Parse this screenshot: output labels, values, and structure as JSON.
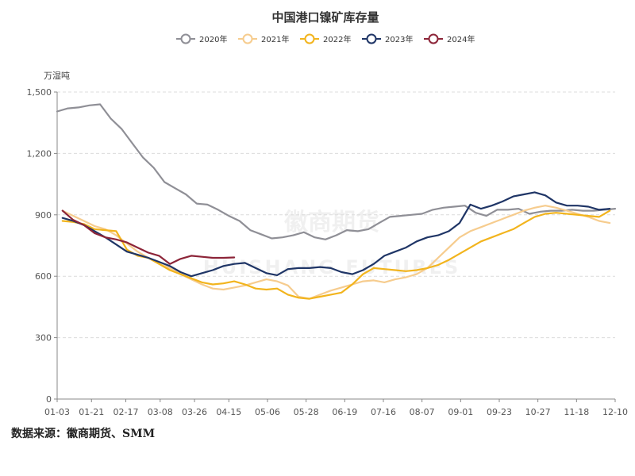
{
  "chart_data": {
    "type": "line",
    "title": "中国港口镍矿库存量",
    "ylabel": "万湿吨",
    "xlabel": "",
    "ylim": [
      0,
      1500
    ],
    "yticks": [
      0,
      300,
      600,
      900,
      1200,
      1500
    ],
    "ytick_labels": [
      "0",
      "300",
      "600",
      "900",
      "1,200",
      "1,500"
    ],
    "x_range_weeks": [
      0,
      52
    ],
    "x_tick_labels": [
      "01-03",
      "01-21",
      "02-17",
      "03-08",
      "03-26",
      "04-15",
      "05-06",
      "05-28",
      "06-19",
      "07-16",
      "08-07",
      "09-01",
      "09-23",
      "10-27",
      "11-18",
      "12-10"
    ],
    "x_tick_weeks": [
      0,
      3.2,
      6.4,
      9.6,
      12.8,
      16,
      19.6,
      23.2,
      26.8,
      30.4,
      34,
      37.6,
      41.2,
      44.8,
      48.4,
      52
    ],
    "legend_position": "top-center",
    "source": "数据来源：徽商期货、SMM",
    "watermark": {
      "cn": "徽商期货",
      "en": "HUISHANG FUTURES"
    },
    "series": [
      {
        "name": "2020年",
        "color": "#8f8f96",
        "x": [
          0,
          1,
          2,
          3,
          4,
          5,
          6,
          7,
          8,
          9,
          10,
          11,
          12,
          13,
          14,
          15,
          16,
          17,
          18,
          19,
          20,
          21,
          22,
          23,
          24,
          25,
          26,
          27,
          28,
          29,
          30,
          31,
          32,
          33,
          34,
          35,
          36,
          37,
          38,
          39,
          40,
          41,
          42,
          43,
          44,
          45,
          46,
          47,
          48,
          49,
          50,
          51,
          52
        ],
        "values": [
          1405,
          1420,
          1425,
          1435,
          1440,
          1370,
          1320,
          1250,
          1180,
          1130,
          1060,
          1030,
          1000,
          955,
          950,
          925,
          895,
          870,
          825,
          805,
          785,
          790,
          800,
          815,
          790,
          780,
          800,
          825,
          820,
          830,
          860,
          890,
          895,
          900,
          905,
          925,
          935,
          940,
          945,
          910,
          895,
          925,
          925,
          930,
          905,
          915,
          920,
          920,
          925,
          920,
          920,
          925,
          930
        ]
      },
      {
        "name": "2021年",
        "color": "#f6cc8e",
        "x": [
          0.5,
          1.5,
          2.5,
          3.5,
          4.5,
          5.5,
          6.5,
          7.5,
          8.5,
          9.5,
          10.5,
          11.5,
          12.5,
          13.5,
          14.5,
          15.5,
          16.5,
          17.5,
          18.5,
          19.5,
          20.5,
          21.5,
          22.5,
          23.5,
          24.5,
          25.5,
          26.5,
          27.5,
          28.5,
          29.5,
          30.5,
          31.5,
          32.5,
          33.5,
          34.5,
          35.5,
          36.5,
          37.5,
          38.5,
          39.5,
          40.5,
          41.5,
          42.5,
          43.5,
          44.5,
          45.5,
          46.5,
          47.5,
          48.5,
          49.5,
          50.5,
          51.5
        ],
        "values": [
          920,
          895,
          870,
          845,
          830,
          800,
          760,
          720,
          690,
          660,
          640,
          610,
          585,
          560,
          540,
          535,
          545,
          555,
          570,
          585,
          575,
          555,
          500,
          490,
          510,
          530,
          545,
          560,
          575,
          580,
          570,
          585,
          595,
          610,
          640,
          690,
          740,
          790,
          820,
          840,
          860,
          880,
          900,
          920,
          935,
          945,
          935,
          920,
          905,
          890,
          870,
          860
        ]
      },
      {
        "name": "2022年",
        "color": "#f2b41d",
        "x": [
          0.5,
          1.5,
          2.5,
          3.5,
          4.5,
          5.5,
          6.5,
          7.5,
          8.5,
          9.5,
          10.5,
          11.5,
          12.5,
          13.5,
          14.5,
          15.5,
          16.5,
          17.5,
          18.5,
          19.5,
          20.5,
          21.5,
          22.5,
          23.5,
          24.5,
          25.5,
          26.5,
          27.5,
          28.5,
          29.5,
          30.5,
          31.5,
          32.5,
          33.5,
          34.5,
          35.5,
          36.5,
          37.5,
          38.5,
          39.5,
          40.5,
          41.5,
          42.5,
          43.5,
          44.5,
          45.5,
          46.5,
          47.5,
          48.5,
          49.5,
          50.5,
          51.5
        ],
        "values": [
          870,
          865,
          855,
          830,
          825,
          820,
          730,
          700,
          690,
          660,
          630,
          610,
          590,
          570,
          560,
          565,
          575,
          560,
          540,
          535,
          540,
          510,
          495,
          490,
          500,
          510,
          520,
          560,
          610,
          640,
          635,
          630,
          625,
          630,
          640,
          655,
          680,
          710,
          740,
          770,
          790,
          810,
          830,
          860,
          890,
          905,
          910,
          905,
          900,
          895,
          890,
          920
        ]
      },
      {
        "name": "2023年",
        "color": "#1f3566",
        "x": [
          0.5,
          1.5,
          2.5,
          3.5,
          4.5,
          5.5,
          6.5,
          7.5,
          8.5,
          9.5,
          10.5,
          11.5,
          12.5,
          13.5,
          14.5,
          15.5,
          16.5,
          17.5,
          18.5,
          19.5,
          20.5,
          21.5,
          22.5,
          23.5,
          24.5,
          25.5,
          26.5,
          27.5,
          28.5,
          29.5,
          30.5,
          31.5,
          32.5,
          33.5,
          34.5,
          35.5,
          36.5,
          37.5,
          38.5,
          39.5,
          40.5,
          41.5,
          42.5,
          43.5,
          44.5,
          45.5,
          46.5,
          47.5,
          48.5,
          49.5,
          50.5,
          51.5
        ],
        "values": [
          885,
          870,
          850,
          820,
          790,
          755,
          720,
          705,
          690,
          670,
          650,
          620,
          600,
          615,
          630,
          650,
          660,
          665,
          640,
          615,
          605,
          635,
          640,
          640,
          645,
          640,
          620,
          610,
          630,
          660,
          700,
          720,
          740,
          770,
          790,
          800,
          820,
          860,
          950,
          930,
          945,
          965,
          990,
          1000,
          1010,
          995,
          960,
          945,
          945,
          940,
          925,
          930
        ]
      },
      {
        "name": "2024年",
        "color": "#8c2438",
        "x": [
          0.5,
          1.5,
          2.5,
          3.5,
          4.5,
          5.5,
          6.5,
          7.5,
          8.5,
          9.5,
          10.5,
          11.5,
          12.5,
          13.5,
          14.5,
          15.5,
          16.5
        ],
        "values": [
          920,
          875,
          850,
          810,
          790,
          780,
          765,
          740,
          715,
          700,
          660,
          685,
          700,
          695,
          690,
          690,
          692
        ]
      }
    ]
  }
}
